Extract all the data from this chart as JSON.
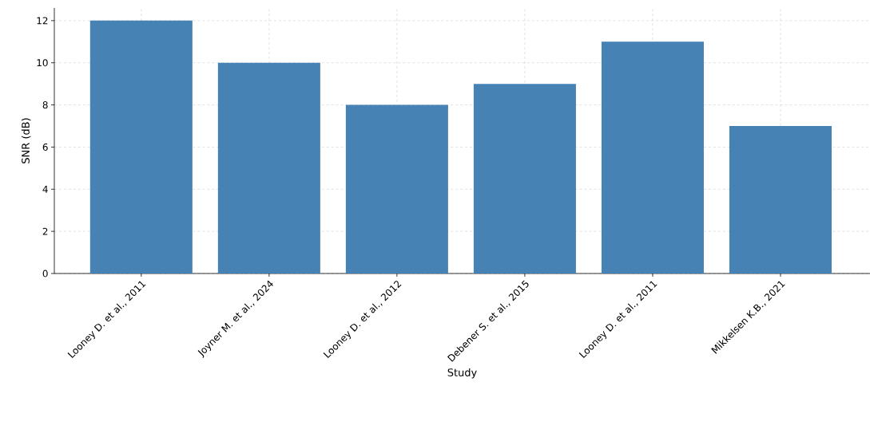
{
  "chart_data": {
    "type": "bar",
    "xlabel": "Study",
    "ylabel": "SNR (dB)",
    "categories": [
      "Looney D. et al., 2011",
      "Joyner M. et al., 2024",
      "Looney D. et al., 2012",
      "Debener S. et al., 2015",
      "Looney D. et al., 2011",
      "Mikkelsen K.B., 2021"
    ],
    "values": [
      12,
      10,
      8,
      9,
      11,
      7
    ],
    "color": "#4682b4",
    "ylim": [
      0,
      12.6
    ],
    "yticks": [
      0,
      2,
      4,
      6,
      8,
      10,
      12
    ],
    "grid": true
  }
}
